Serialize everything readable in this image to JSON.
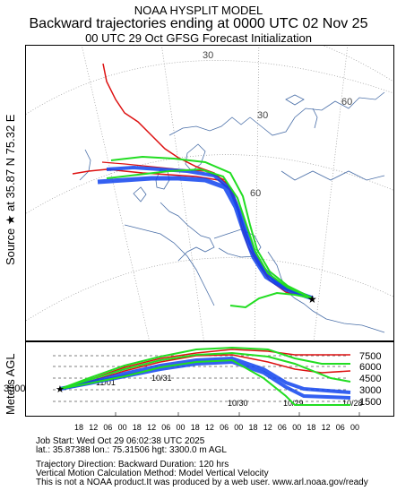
{
  "header": {
    "line1": "NOAA HYSPLIT MODEL",
    "line2": "Backward trajectories ending at 0000 UTC 02 Nov 25",
    "line3": "00 UTC 29 Oct    GFSG  Forecast Initialization"
  },
  "source_label": "Source ★ at   35.87 N   75.32 E",
  "map": {
    "grid_labels": [
      "30",
      "30",
      "60",
      "60"
    ],
    "colors": {
      "red": "#dd1111",
      "blue": "#1144ee",
      "green": "#22dd22",
      "coast": "#4a6fa8",
      "grid": "#999999"
    }
  },
  "vertical_panel": {
    "axis_label": "Meters AGL",
    "source_height": "3300",
    "right_ticks": [
      "7500",
      "6000",
      "4500",
      "3000",
      "1500"
    ],
    "time_ticks": [
      "18",
      "12",
      "06",
      "00",
      "18",
      "12",
      "06",
      "00",
      "18",
      "12",
      "06",
      "00",
      "18",
      "12",
      "06",
      "00",
      "18",
      "12",
      "06",
      "00"
    ],
    "date_labels": [
      "11/01",
      "10/31",
      "10/30",
      "10/29",
      "10/28"
    ]
  },
  "footer": {
    "job_start": "Job Start: Wed Oct 29 06:02:38 UTC 2025",
    "location": "lat.: 35.87388   lon.: 75.31506   hgt: 3300.0 m AGL",
    "direction": "Trajectory Direction: Backward       Duration: 120 hrs",
    "vertical_motion": "Vertical Motion Calculation Method: Model Vertical Velocity",
    "disclaimer": "This is not a NOAA product.It was produced by a web user.  www.arl.noaa.gov/ready"
  }
}
